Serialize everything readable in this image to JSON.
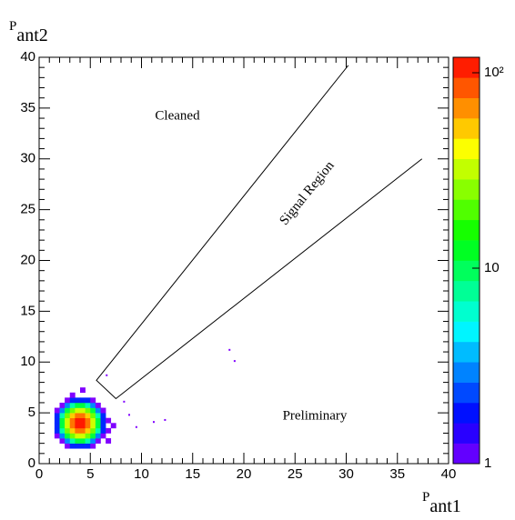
{
  "chart_data": {
    "type": "histogram2d",
    "x_label": {
      "main": "P",
      "sub": "ant1"
    },
    "y_label": {
      "main": "P",
      "sub": "ant2"
    },
    "annotations": [
      "Cleaned",
      "Signal Region",
      "Preliminary"
    ],
    "xlim": [
      0,
      40
    ],
    "ylim": [
      0,
      40
    ],
    "xticks": [
      0,
      5,
      10,
      15,
      20,
      25,
      30,
      35,
      40
    ],
    "yticks": [
      0,
      5,
      10,
      15,
      20,
      25,
      30,
      35,
      40
    ],
    "zlim": [
      1,
      120
    ],
    "zscale": "log",
    "colormap": "rainbow",
    "zticks": [
      1,
      10,
      {
        "value": 100,
        "label": "10²"
      }
    ],
    "x_bins": [
      1.5,
      2,
      2.5,
      3,
      3.5,
      4,
      4.5,
      5,
      5.5,
      6,
      6.5,
      7,
      7.5
    ],
    "y_bins": [
      1.5,
      2,
      2.5,
      3,
      3.5,
      4,
      4.5,
      5,
      5.5,
      6,
      6.5,
      7,
      7.5
    ],
    "z": [
      [
        null,
        null,
        1,
        2,
        2,
        2,
        2,
        1,
        null,
        null,
        null,
        null
      ],
      [
        null,
        1,
        3,
        7,
        11,
        11,
        7,
        3,
        1,
        null,
        1,
        null
      ],
      [
        1,
        3,
        11,
        23,
        34,
        34,
        23,
        11,
        3,
        1,
        null,
        null
      ],
      [
        2,
        7,
        23,
        51,
        74,
        74,
        51,
        23,
        7,
        2,
        1,
        null
      ],
      [
        2,
        11,
        34,
        74,
        108,
        108,
        74,
        34,
        11,
        2,
        null,
        1
      ],
      [
        2,
        11,
        34,
        74,
        108,
        108,
        74,
        34,
        11,
        2,
        1,
        null
      ],
      [
        2,
        7,
        23,
        51,
        74,
        74,
        51,
        23,
        7,
        2,
        null,
        null
      ],
      [
        1,
        3,
        11,
        23,
        34,
        34,
        23,
        11,
        3,
        1,
        null,
        null
      ],
      [
        null,
        1,
        3,
        7,
        11,
        11,
        7,
        3,
        1,
        null,
        null,
        null
      ],
      [
        null,
        null,
        1,
        2,
        2,
        2,
        2,
        1,
        null,
        null,
        null,
        null
      ],
      [
        null,
        null,
        null,
        1,
        null,
        null,
        null,
        null,
        null,
        null,
        null,
        null
      ],
      [
        null,
        null,
        null,
        null,
        null,
        1,
        null,
        null,
        null,
        null,
        null,
        null
      ]
    ],
    "points": {
      "x": [
        8.8,
        9.5,
        11.2,
        12.3,
        18.6,
        19.1,
        6.6,
        8.3
      ],
      "y": [
        4.8,
        3.6,
        4.1,
        4.3,
        11.2,
        10.1,
        8.7,
        6.1
      ]
    },
    "signal_region": {
      "x": [
        30.2,
        5.6,
        7.5,
        37.4
      ],
      "y": [
        39.2,
        8.2,
        6.4,
        30
      ]
    }
  }
}
